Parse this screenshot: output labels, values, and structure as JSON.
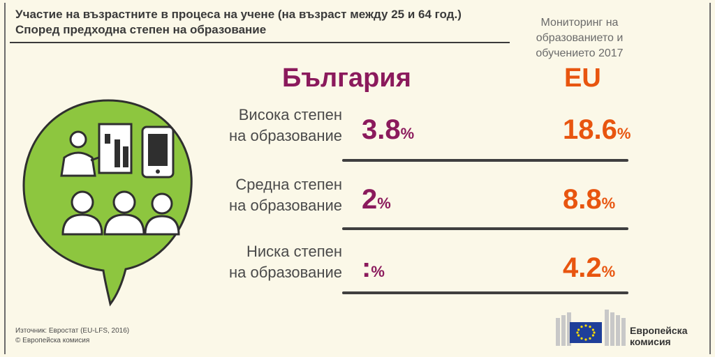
{
  "title": {
    "line1": "Участие на възрастните в процеса на учене (на възраст между 25 и 64 год.)",
    "line2": "Според предходна степен на образование"
  },
  "monitor": {
    "line1": "Мониторинг на",
    "line2": "образованието и",
    "line3": "обучението 2017"
  },
  "columns": {
    "country": "България",
    "eu": "EU"
  },
  "rows": [
    {
      "label1": "Висока степен",
      "label2": "на образование",
      "bg_value": "3.8",
      "eu_value": "18.6"
    },
    {
      "label1": "Средна степен",
      "label2": "на образование",
      "bg_value": "2",
      "eu_value": "8.8"
    },
    {
      "label1": "Ниска степен",
      "label2": "на образование",
      "bg_value": ":",
      "eu_value": "4.2"
    }
  ],
  "percent_sign": "%",
  "source": {
    "line1": "Източник: Евростат (EU-LFS, 2016)",
    "line2": "© Европейска комисия"
  },
  "logo": {
    "line1": "Европейска",
    "line2": "комисия"
  },
  "colors": {
    "country": "#8b1a5c",
    "eu": "#e8550f",
    "bubble": "#8dc63f",
    "background": "#fbf8e8"
  }
}
